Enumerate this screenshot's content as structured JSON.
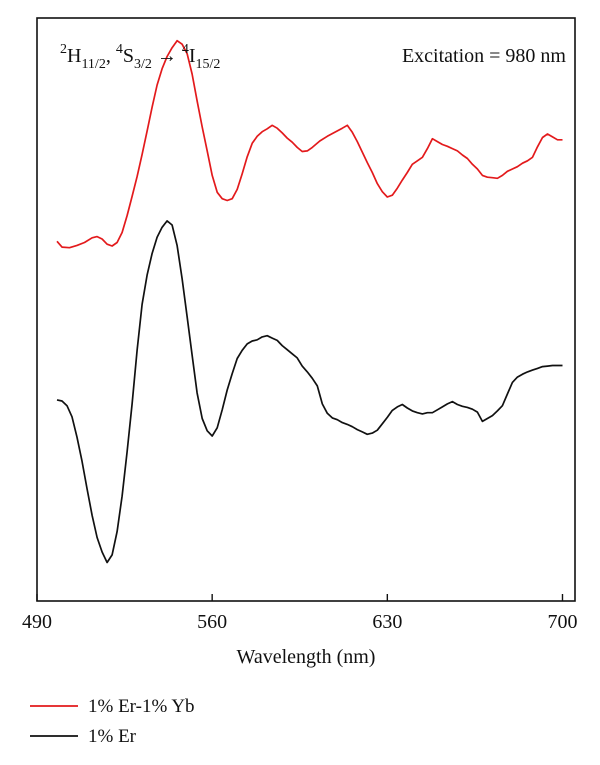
{
  "chart_data": {
    "type": "line",
    "title": "",
    "xlabel": "Wavelength (nm)",
    "ylabel": "",
    "xlim": [
      490,
      705
    ],
    "ylim": [
      0,
      1
    ],
    "xticks": [
      490,
      560,
      630,
      700
    ],
    "yticks": [],
    "grid": false,
    "legend": {
      "placement": "bottom-left, below plot"
    },
    "annotations": {
      "transition": {
        "t1_sup": "2",
        "t1_main": "H",
        "t1_sub": "11/2",
        "sep": ", ",
        "t2_sup": "4",
        "t2_main": "S",
        "t2_sub": "3/2",
        "arrow": " → ",
        "t3_sup": "4",
        "t3_main": "I",
        "t3_sub": "15/2"
      },
      "excitation": "Excitation = 980 nm"
    },
    "series": [
      {
        "name": "1% Er-1% Yb",
        "color": "#e31a1c",
        "x": [
          498,
          500,
          503,
          506,
          509,
          512,
          514,
          516,
          518,
          520,
          522,
          524,
          526,
          528,
          530,
          532,
          534,
          536,
          538,
          540,
          542,
          544,
          546,
          548,
          550,
          552,
          554,
          556,
          558,
          560,
          562,
          564,
          566,
          568,
          570,
          572,
          574,
          576,
          578,
          580,
          582,
          584,
          586,
          588,
          590,
          592,
          594,
          596,
          598,
          600,
          603,
          606,
          609,
          612,
          614,
          616,
          618,
          620,
          622,
          624,
          626,
          628,
          630,
          632,
          634,
          636,
          638,
          640,
          642,
          644,
          646,
          648,
          650,
          652,
          654,
          656,
          658,
          660,
          662,
          664,
          666,
          668,
          670,
          672,
          674,
          676,
          678,
          680,
          682,
          684,
          686,
          688,
          690,
          692,
          694,
          696,
          698,
          700
        ],
        "values": [
          0.617,
          0.607,
          0.606,
          0.61,
          0.615,
          0.623,
          0.625,
          0.621,
          0.612,
          0.609,
          0.615,
          0.632,
          0.661,
          0.694,
          0.728,
          0.766,
          0.806,
          0.847,
          0.885,
          0.913,
          0.934,
          0.949,
          0.961,
          0.955,
          0.939,
          0.904,
          0.858,
          0.813,
          0.772,
          0.73,
          0.701,
          0.69,
          0.687,
          0.69,
          0.706,
          0.733,
          0.762,
          0.785,
          0.797,
          0.805,
          0.81,
          0.816,
          0.811,
          0.803,
          0.794,
          0.787,
          0.778,
          0.771,
          0.772,
          0.778,
          0.789,
          0.797,
          0.804,
          0.811,
          0.816,
          0.804,
          0.788,
          0.77,
          0.752,
          0.735,
          0.716,
          0.702,
          0.693,
          0.696,
          0.708,
          0.722,
          0.735,
          0.749,
          0.755,
          0.761,
          0.776,
          0.793,
          0.788,
          0.783,
          0.78,
          0.776,
          0.772,
          0.765,
          0.759,
          0.749,
          0.741,
          0.73,
          0.727,
          0.726,
          0.725,
          0.73,
          0.737,
          0.741,
          0.745,
          0.751,
          0.755,
          0.761,
          0.779,
          0.795,
          0.801,
          0.796,
          0.791,
          0.791
        ]
      },
      {
        "name": "1% Er",
        "color": "#111111",
        "x": [
          498,
          500,
          502,
          504,
          506,
          508,
          510,
          512,
          514,
          516,
          518,
          520,
          522,
          524,
          526,
          528,
          530,
          532,
          534,
          536,
          538,
          540,
          542,
          544,
          546,
          548,
          550,
          552,
          554,
          556,
          558,
          560,
          562,
          564,
          566,
          568,
          570,
          572,
          574,
          576,
          578,
          580,
          582,
          584,
          586,
          588,
          590,
          592,
          594,
          596,
          598,
          600,
          602,
          604,
          606,
          608,
          610,
          612,
          614,
          616,
          618,
          620,
          622,
          624,
          626,
          628,
          630,
          632,
          634,
          636,
          638,
          640,
          642,
          644,
          646,
          648,
          650,
          652,
          654,
          656,
          658,
          660,
          662,
          664,
          666,
          668,
          670,
          672,
          674,
          676,
          678,
          680,
          682,
          684,
          686,
          688,
          690,
          692,
          694,
          696,
          698,
          700
        ],
        "values": [
          0.345,
          0.343,
          0.335,
          0.316,
          0.281,
          0.24,
          0.193,
          0.147,
          0.109,
          0.084,
          0.066,
          0.079,
          0.119,
          0.18,
          0.256,
          0.338,
          0.43,
          0.509,
          0.559,
          0.596,
          0.624,
          0.641,
          0.652,
          0.645,
          0.61,
          0.553,
          0.488,
          0.422,
          0.357,
          0.313,
          0.292,
          0.283,
          0.297,
          0.328,
          0.362,
          0.39,
          0.416,
          0.43,
          0.441,
          0.446,
          0.448,
          0.453,
          0.455,
          0.451,
          0.447,
          0.438,
          0.431,
          0.424,
          0.417,
          0.403,
          0.393,
          0.382,
          0.369,
          0.338,
          0.322,
          0.314,
          0.311,
          0.306,
          0.303,
          0.299,
          0.294,
          0.29,
          0.286,
          0.288,
          0.293,
          0.304,
          0.315,
          0.327,
          0.333,
          0.337,
          0.331,
          0.326,
          0.323,
          0.321,
          0.323,
          0.323,
          0.328,
          0.333,
          0.338,
          0.342,
          0.337,
          0.334,
          0.332,
          0.329,
          0.324,
          0.308,
          0.313,
          0.318,
          0.326,
          0.335,
          0.355,
          0.375,
          0.384,
          0.389,
          0.393,
          0.396,
          0.399,
          0.402,
          0.403,
          0.404,
          0.404,
          0.404
        ]
      }
    ]
  }
}
